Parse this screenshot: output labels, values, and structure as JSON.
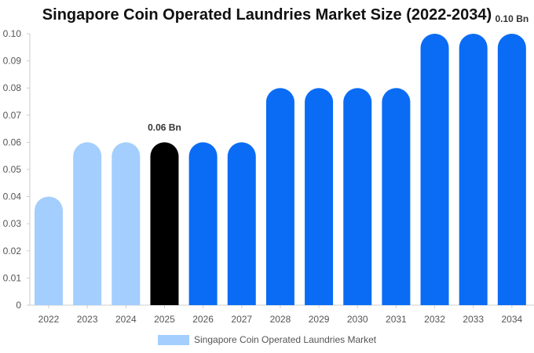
{
  "chart_data": {
    "type": "bar",
    "title": "Singapore Coin Operated Laundries Market Size (2022-2034)",
    "categories": [
      "2022",
      "2023",
      "2024",
      "2025",
      "2026",
      "2027",
      "2028",
      "2029",
      "2030",
      "2031",
      "2032",
      "2033",
      "2034"
    ],
    "series": [
      {
        "name": "Singapore Coin Operated Laundries Market",
        "values": [
          0.04,
          0.06,
          0.06,
          0.06,
          0.06,
          0.06,
          0.08,
          0.08,
          0.08,
          0.08,
          0.1,
          0.1,
          0.1
        ]
      }
    ],
    "bar_colors": [
      "#a3cefd",
      "#a3cefd",
      "#a3cefd",
      "#000000",
      "#0a6cf5",
      "#0a6cf5",
      "#0a6cf5",
      "#0a6cf5",
      "#0a6cf5",
      "#0a6cf5",
      "#0a6cf5",
      "#0a6cf5",
      "#0a6cf5"
    ],
    "ylim": [
      0,
      0.1
    ],
    "yticks": [
      "0",
      "0.01",
      "0.02",
      "0.03",
      "0.04",
      "0.05",
      "0.06",
      "0.07",
      "0.08",
      "0.09",
      "0.10"
    ],
    "annotations": [
      {
        "index": 3,
        "text": "0.06 Bn"
      },
      {
        "index": 12,
        "text": "0.10 Bn"
      }
    ],
    "legend": {
      "position": "bottom",
      "swatch_color": "#a3cefd"
    },
    "grid": false
  }
}
